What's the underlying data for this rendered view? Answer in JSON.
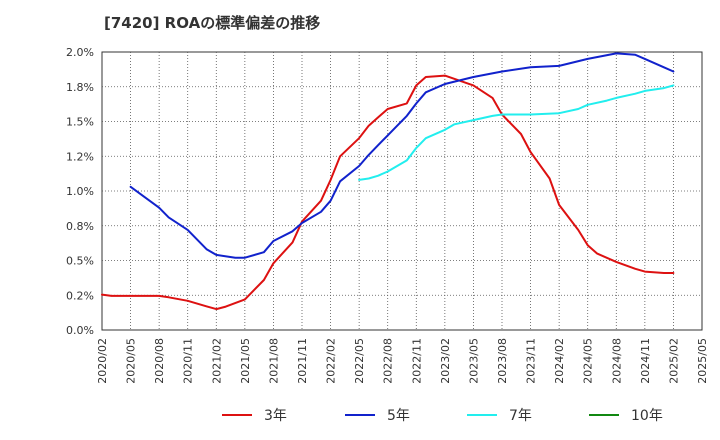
{
  "chart_data": {
    "type": "line",
    "title": "[7420]  ROAの標準偏差の推移",
    "xlabel": "",
    "ylabel": "",
    "ylim": [
      0,
      0.02
    ],
    "y_ticks": [
      0,
      0.0025,
      0.005,
      0.0075,
      0.01,
      0.0125,
      0.015,
      0.0175,
      0.02
    ],
    "y_tick_labels": [
      "0.0%",
      "0.2%",
      "0.5%",
      "0.8%",
      "1.0%",
      "1.2%",
      "1.5%",
      "1.8%",
      "2.0%"
    ],
    "x_tick_labels": [
      "2020/02",
      "2020/05",
      "2020/08",
      "2020/11",
      "2021/02",
      "2021/05",
      "2021/08",
      "2021/11",
      "2022/02",
      "2022/05",
      "2022/08",
      "2022/11",
      "2023/02",
      "2023/05",
      "2023/08",
      "2023/11",
      "2024/02",
      "2024/05",
      "2024/08",
      "2024/11",
      "2025/02",
      "2025/05"
    ],
    "grid": true,
    "legend_position": "bottom",
    "series": [
      {
        "name": "3年",
        "color": "#dd1111",
        "points": [
          [
            "2020/02",
            0.00255
          ],
          [
            "2020/03",
            0.00245
          ],
          [
            "2020/05",
            0.00245
          ],
          [
            "2020/08",
            0.00245
          ],
          [
            "2020/09",
            0.00235
          ],
          [
            "2020/11",
            0.0021
          ],
          [
            "2021/01",
            0.0017
          ],
          [
            "2021/02",
            0.0015
          ],
          [
            "2021/03",
            0.00168
          ],
          [
            "2021/05",
            0.0022
          ],
          [
            "2021/07",
            0.0036
          ],
          [
            "2021/08",
            0.0048
          ],
          [
            "2021/10",
            0.0063
          ],
          [
            "2021/11",
            0.0078
          ],
          [
            "2022/01",
            0.0093
          ],
          [
            "2022/02",
            0.0108
          ],
          [
            "2022/03",
            0.0125
          ],
          [
            "2022/05",
            0.0138
          ],
          [
            "2022/06",
            0.0147
          ],
          [
            "2022/07",
            0.0153
          ],
          [
            "2022/08",
            0.0159
          ],
          [
            "2022/10",
            0.0163
          ],
          [
            "2022/11",
            0.0176
          ],
          [
            "2022/12",
            0.0182
          ],
          [
            "2023/02",
            0.0183
          ],
          [
            "2023/05",
            0.0176
          ],
          [
            "2023/07",
            0.0167
          ],
          [
            "2023/08",
            0.0155
          ],
          [
            "2023/10",
            0.0141
          ],
          [
            "2023/11",
            0.0128
          ],
          [
            "2024/01",
            0.0109
          ],
          [
            "2024/02",
            0.009
          ],
          [
            "2024/04",
            0.0072
          ],
          [
            "2024/05",
            0.0061
          ],
          [
            "2024/06",
            0.0055
          ],
          [
            "2024/08",
            0.0049
          ],
          [
            "2024/10",
            0.0044
          ],
          [
            "2024/11",
            0.0042
          ],
          [
            "2025/01",
            0.0041
          ],
          [
            "2025/02",
            0.0041
          ]
        ]
      },
      {
        "name": "5年",
        "color": "#1122cc",
        "points": [
          [
            "2020/05",
            0.0103
          ],
          [
            "2020/08",
            0.0088
          ],
          [
            "2020/09",
            0.0081
          ],
          [
            "2020/11",
            0.0072
          ],
          [
            "2021/01",
            0.0058
          ],
          [
            "2021/02",
            0.0054
          ],
          [
            "2021/04",
            0.0052
          ],
          [
            "2021/05",
            0.0052
          ],
          [
            "2021/07",
            0.0056
          ],
          [
            "2021/08",
            0.0064
          ],
          [
            "2021/10",
            0.0071
          ],
          [
            "2021/11",
            0.0077
          ],
          [
            "2022/01",
            0.0085
          ],
          [
            "2022/02",
            0.0093
          ],
          [
            "2022/03",
            0.0107
          ],
          [
            "2022/05",
            0.0118
          ],
          [
            "2022/06",
            0.0126
          ],
          [
            "2022/07",
            0.0133
          ],
          [
            "2022/08",
            0.014
          ],
          [
            "2022/10",
            0.0154
          ],
          [
            "2022/11",
            0.0163
          ],
          [
            "2022/12",
            0.0171
          ],
          [
            "2023/02",
            0.0177
          ],
          [
            "2023/05",
            0.0182
          ],
          [
            "2023/08",
            0.0186
          ],
          [
            "2023/11",
            0.0189
          ],
          [
            "2024/02",
            0.019
          ],
          [
            "2024/05",
            0.0195
          ],
          [
            "2024/08",
            0.0199
          ],
          [
            "2024/10",
            0.0198
          ],
          [
            "2024/11",
            0.0195
          ],
          [
            "2025/01",
            0.0189
          ],
          [
            "2025/02",
            0.0186
          ]
        ]
      },
      {
        "name": "7年",
        "color": "#22eeee",
        "points": [
          [
            "2022/05",
            0.0108
          ],
          [
            "2022/06",
            0.0109
          ],
          [
            "2022/07",
            0.0111
          ],
          [
            "2022/08",
            0.0114
          ],
          [
            "2022/10",
            0.0122
          ],
          [
            "2022/11",
            0.0131
          ],
          [
            "2022/12",
            0.0138
          ],
          [
            "2023/02",
            0.0144
          ],
          [
            "2023/03",
            0.0148
          ],
          [
            "2023/05",
            0.0151
          ],
          [
            "2023/07",
            0.0154
          ],
          [
            "2023/08",
            0.0155
          ],
          [
            "2023/11",
            0.0155
          ],
          [
            "2024/02",
            0.0156
          ],
          [
            "2024/04",
            0.0159
          ],
          [
            "2024/05",
            0.0162
          ],
          [
            "2024/07",
            0.0165
          ],
          [
            "2024/08",
            0.0167
          ],
          [
            "2024/10",
            0.017
          ],
          [
            "2024/11",
            0.0172
          ],
          [
            "2025/01",
            0.0174
          ],
          [
            "2025/02",
            0.0176
          ]
        ]
      },
      {
        "name": "10年",
        "color": "#118811",
        "points": []
      }
    ]
  }
}
